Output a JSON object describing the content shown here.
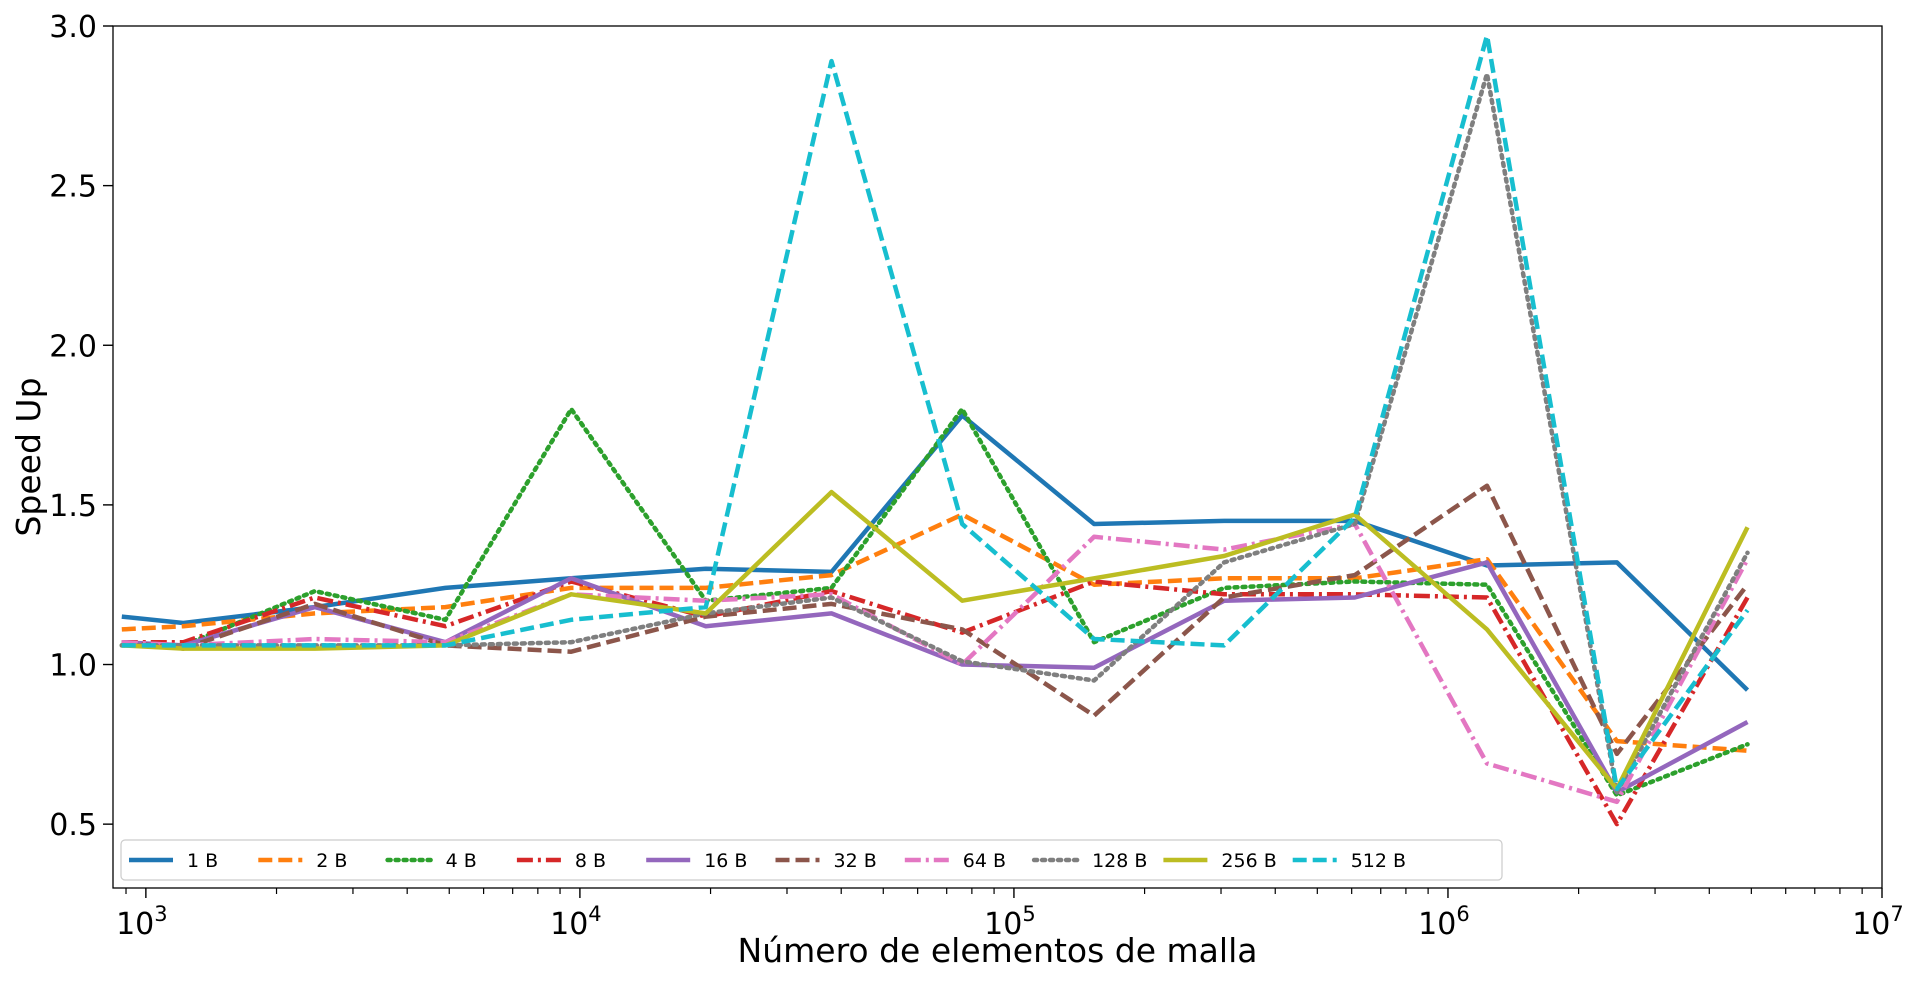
{
  "chart_data": {
    "type": "line",
    "title": "",
    "xlabel": "Número de elementos de malla",
    "ylabel": "Speed Up",
    "xscale": "log",
    "xlim": [
      840,
      10000000
    ],
    "ylim": [
      0.3,
      3.0
    ],
    "grid": false,
    "legend_position": "bottom-left",
    "x_ticks": [
      {
        "value": 1000,
        "base": "10",
        "exp": "3"
      },
      {
        "value": 10000,
        "base": "10",
        "exp": "4"
      },
      {
        "value": 100000,
        "base": "10",
        "exp": "5"
      },
      {
        "value": 1000000,
        "base": "10",
        "exp": "6"
      },
      {
        "value": 10000000,
        "base": "10",
        "exp": "7"
      }
    ],
    "y_ticks": [
      {
        "value": 0.5,
        "label": "0.5"
      },
      {
        "value": 1.0,
        "label": "1.0"
      },
      {
        "value": 1.5,
        "label": "1.5"
      },
      {
        "value": 2.0,
        "label": "2.0"
      },
      {
        "value": 2.5,
        "label": "2.5"
      },
      {
        "value": 3.0,
        "label": "3.0"
      }
    ],
    "x": [
      880,
      1220,
      2450,
      4900,
      9550,
      19500,
      38000,
      76000,
      153000,
      305000,
      610000,
      1230000,
      2450000,
      4900000
    ],
    "series": [
      {
        "name": "1 B",
        "color": "#1f77b4",
        "dash": "solid",
        "values": [
          1.15,
          1.13,
          1.18,
          1.24,
          1.27,
          1.3,
          1.29,
          1.78,
          1.44,
          1.45,
          1.45,
          1.31,
          1.32,
          0.92
        ]
      },
      {
        "name": "2 B",
        "color": "#ff7f0e",
        "dash": "dashed",
        "values": [
          1.11,
          1.12,
          1.16,
          1.18,
          1.24,
          1.24,
          1.28,
          1.47,
          1.25,
          1.27,
          1.27,
          1.33,
          0.76,
          0.73
        ]
      },
      {
        "name": "4 B",
        "color": "#2ca02c",
        "dash": "dotted",
        "values": [
          1.06,
          1.06,
          1.23,
          1.14,
          1.8,
          1.2,
          1.24,
          1.8,
          1.07,
          1.24,
          1.26,
          1.25,
          0.59,
          0.75
        ]
      },
      {
        "name": "8 B",
        "color": "#d62728",
        "dash": "dashdot",
        "values": [
          1.07,
          1.07,
          1.21,
          1.12,
          1.26,
          1.15,
          1.23,
          1.1,
          1.26,
          1.22,
          1.22,
          1.21,
          0.5,
          1.21
        ]
      },
      {
        "name": "16 B",
        "color": "#9467bd",
        "dash": "solid",
        "values": [
          1.07,
          1.06,
          1.18,
          1.07,
          1.27,
          1.12,
          1.16,
          1.0,
          0.99,
          1.2,
          1.21,
          1.32,
          0.6,
          0.82
        ]
      },
      {
        "name": "32 B",
        "color": "#8c564b",
        "dash": "dashed",
        "values": [
          1.07,
          1.05,
          1.19,
          1.06,
          1.04,
          1.15,
          1.19,
          1.11,
          0.84,
          1.21,
          1.28,
          1.56,
          0.72,
          1.25
        ]
      },
      {
        "name": "64 B",
        "color": "#e377c2",
        "dash": "dashdot",
        "values": [
          1.07,
          1.06,
          1.08,
          1.07,
          1.22,
          1.2,
          1.22,
          1.0,
          1.4,
          1.36,
          1.44,
          0.69,
          0.57,
          1.33
        ]
      },
      {
        "name": "128 B",
        "color": "#7f7f7f",
        "dash": "dotted",
        "values": [
          1.06,
          1.06,
          1.06,
          1.06,
          1.07,
          1.16,
          1.21,
          1.01,
          0.95,
          1.32,
          1.44,
          2.85,
          0.6,
          1.35
        ]
      },
      {
        "name": "256 B",
        "color": "#bcbd22",
        "dash": "solid",
        "values": [
          1.06,
          1.05,
          1.05,
          1.06,
          1.22,
          1.16,
          1.54,
          1.2,
          1.27,
          1.34,
          1.47,
          1.11,
          0.61,
          1.43
        ]
      },
      {
        "name": "512 B",
        "color": "#17becf",
        "dash": "dashed",
        "values": [
          1.06,
          1.06,
          1.06,
          1.06,
          1.14,
          1.18,
          2.89,
          1.44,
          1.08,
          1.06,
          1.46,
          2.97,
          0.61,
          1.17
        ]
      }
    ]
  }
}
